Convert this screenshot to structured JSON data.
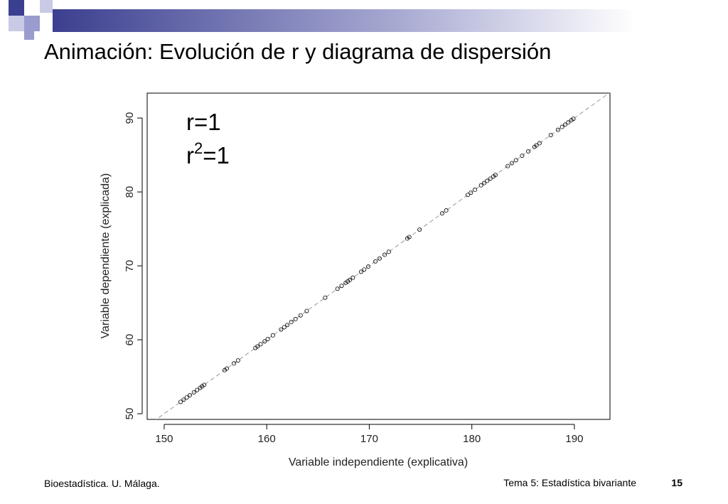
{
  "slide": {
    "title": "Animación: Evolución de r y diagrama de dispersión",
    "footer_left": "Bioestadística. U. Málaga.",
    "footer_right": "Tema 5: Estadística bivariante",
    "page_number": "15"
  },
  "chart_data": {
    "type": "scatter",
    "xlabel": "Variable independiente (explicativa)",
    "ylabel": "Variable dependiente (explicada)",
    "annotation_r": "r=1",
    "annotation_r2": {
      "base": "r",
      "exponent": "2",
      "text": "=1"
    },
    "color": "#000000",
    "xlim": [
      148.34,
      193.47
    ],
    "ylim": [
      49.23,
      93.37
    ],
    "xticks": [
      150,
      160,
      170,
      180,
      190
    ],
    "yticks": [
      50,
      60,
      70,
      80,
      90
    ],
    "x": [
      151.6,
      151.9,
      152.2,
      152.5,
      152.9,
      153.2,
      153.5,
      153.7,
      153.9,
      155.9,
      156.1,
      156.8,
      157.2,
      158.9,
      159.1,
      159.4,
      159.8,
      160.1,
      160.6,
      161.4,
      161.7,
      162.0,
      162.4,
      162.8,
      163.3,
      163.9,
      165.7,
      166.9,
      167.3,
      167.7,
      167.9,
      168.1,
      168.4,
      169.2,
      169.5,
      169.9,
      170.6,
      171.0,
      171.5,
      171.9,
      173.7,
      173.9,
      174.9,
      177.1,
      177.5,
      179.6,
      179.9,
      180.3,
      180.9,
      181.2,
      181.5,
      181.8,
      182.1,
      182.3,
      183.5,
      183.9,
      184.3,
      184.9,
      185.5,
      186.1,
      186.3,
      186.6,
      187.7,
      188.4,
      188.8,
      189.1,
      189.4,
      189.7,
      189.9
    ],
    "y": [
      51.6,
      51.9,
      52.2,
      52.5,
      52.9,
      53.2,
      53.5,
      53.7,
      53.9,
      55.9,
      56.1,
      56.8,
      57.2,
      58.9,
      59.1,
      59.4,
      59.8,
      60.1,
      60.6,
      61.4,
      61.7,
      62.0,
      62.4,
      62.8,
      63.3,
      63.9,
      65.7,
      66.9,
      67.3,
      67.7,
      67.9,
      68.1,
      68.4,
      69.2,
      69.5,
      69.9,
      70.6,
      71.0,
      71.5,
      71.9,
      73.7,
      73.9,
      74.9,
      77.1,
      77.5,
      79.6,
      79.9,
      80.3,
      80.9,
      81.2,
      81.5,
      81.8,
      82.1,
      82.3,
      83.5,
      83.9,
      84.3,
      84.9,
      85.5,
      86.1,
      86.3,
      86.6,
      87.7,
      88.4,
      88.8,
      89.1,
      89.4,
      89.7,
      89.9
    ]
  }
}
